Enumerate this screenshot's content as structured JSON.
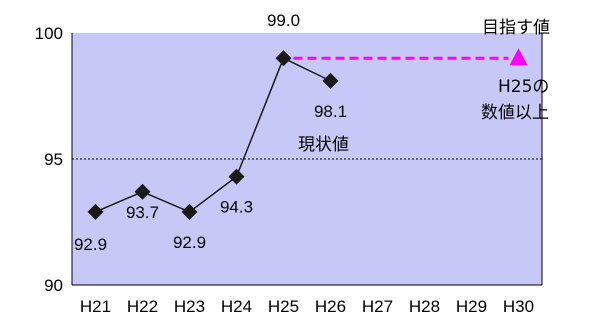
{
  "chart_data": {
    "type": "line",
    "title": "",
    "xlabel": "",
    "ylabel": "",
    "categories": [
      "H21",
      "H22",
      "H23",
      "H24",
      "H25",
      "H26",
      "H27",
      "H28",
      "H29",
      "H30"
    ],
    "ylim": [
      90,
      100
    ],
    "yticks": [
      90,
      95,
      100
    ],
    "grid": "dotted line at 95 only",
    "series": [
      {
        "values": [
          92.9,
          93.7,
          92.9,
          94.3,
          99.0,
          98.1,
          null,
          null,
          null,
          null
        ],
        "data_labels": [
          "92.9",
          "93.7",
          "92.9",
          "94.3",
          "99.0",
          "98.1",
          "",
          "",
          "",
          ""
        ],
        "marker": "diamond",
        "color": "#1a1a1a"
      }
    ],
    "target": {
      "from_category": "H25",
      "to_category": "H30",
      "value": 99.0,
      "line_style": "dashed",
      "color": "#ff00ff",
      "marker": "triangle",
      "label": "目指す値",
      "note_lines": [
        "H25の",
        "数値以上"
      ]
    },
    "annotation_current": "現状値",
    "colors": {
      "plot_background": "#c8c8f8",
      "series": "#1a1a1a",
      "target": "#ff00ff"
    }
  }
}
